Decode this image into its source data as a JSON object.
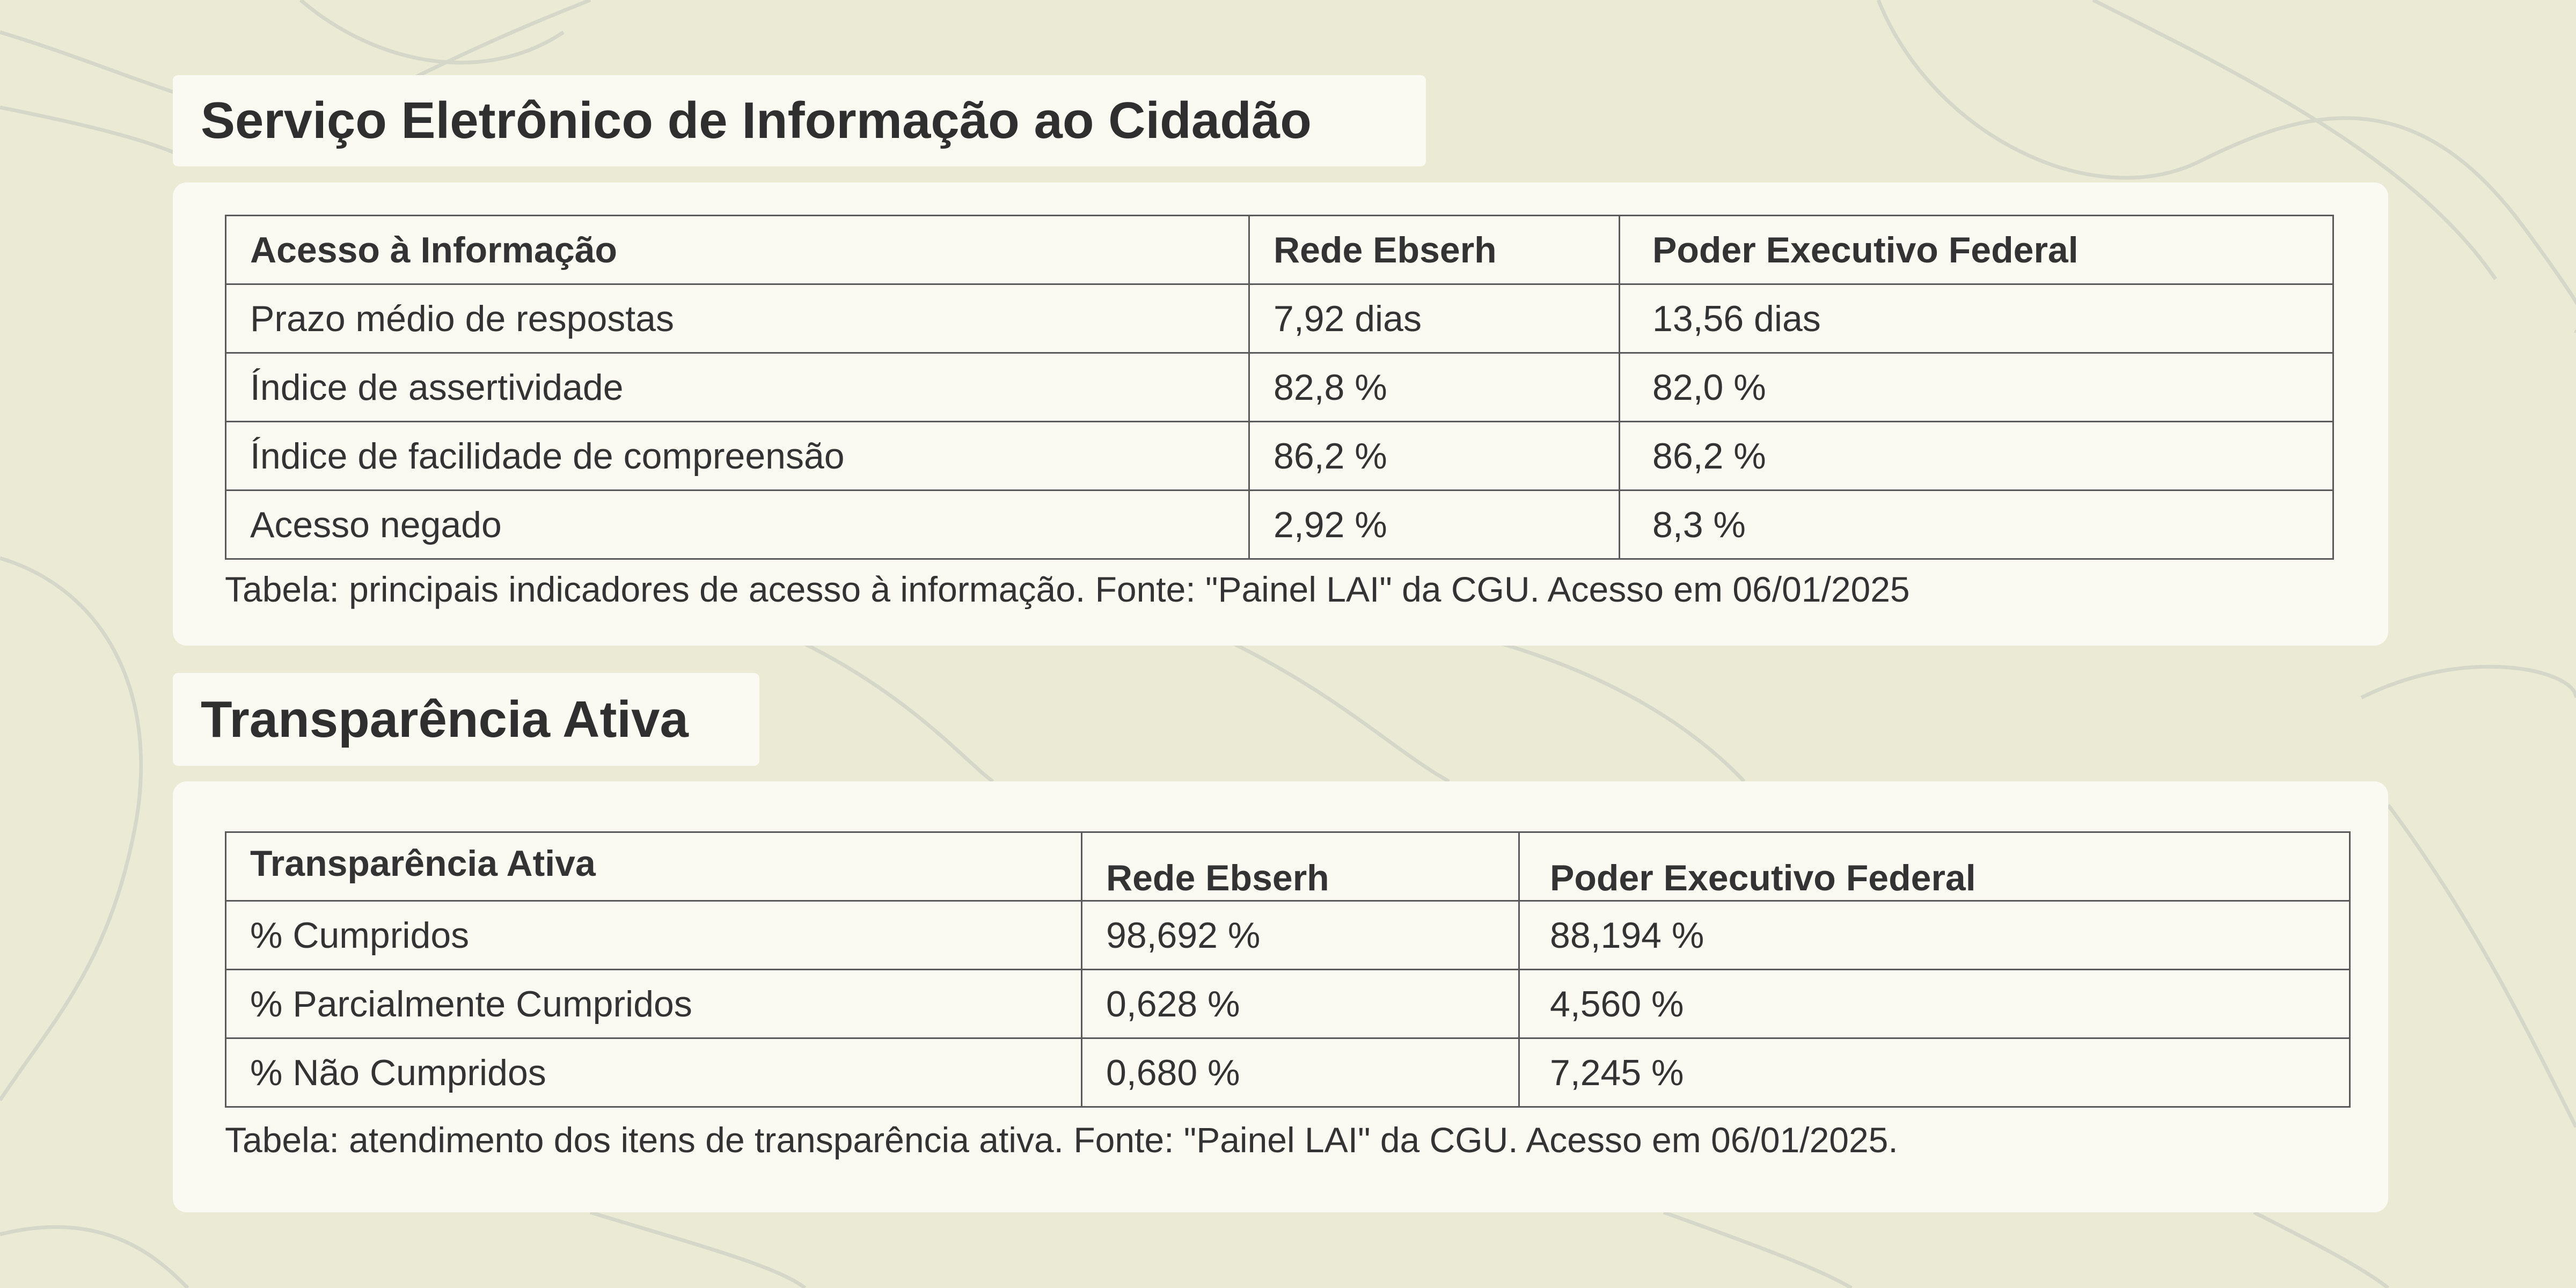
{
  "sections": [
    {
      "title": "Serviço Eletrônico de Informação ao Cidadão",
      "table": {
        "headers": [
          "Acesso à Informação",
          "Rede Ebserh",
          "Poder Executivo Federal"
        ],
        "rows": [
          [
            "Prazo médio de respostas",
            "7,92 dias",
            "13,56 dias"
          ],
          [
            "Índice de assertividade",
            "82,8 %",
            "82,0 %"
          ],
          [
            "Índice de facilidade de compreensão",
            "86,2 %",
            "86,2 %"
          ],
          [
            "Acesso negado",
            "2,92 %",
            "8,3 %"
          ]
        ]
      },
      "caption": "Tabela: principais indicadores de acesso à informação. Fonte: \"Painel LAI\" da CGU. Acesso em 06/01/2025"
    },
    {
      "title": "Transparência Ativa",
      "table": {
        "headers": [
          "Transparência Ativa",
          "Rede Ebserh",
          "Poder Executivo Federal"
        ],
        "rows": [
          [
            "% Cumpridos",
            "98,692 %",
            "88,194 %"
          ],
          [
            "% Parcialmente Cumpridos",
            "0,628 %",
            "4,560 %"
          ],
          [
            "% Não Cumpridos",
            "0,680 %",
            "7,245 %"
          ]
        ]
      },
      "caption": "Tabela: atendimento dos itens de transparência ativa. Fonte: \"Painel LAI\" da CGU. Acesso em 06/01/2025."
    }
  ],
  "colors": {
    "background": "#ebebd5",
    "panel": "#fafaf2",
    "text": "#333333",
    "border": "#5a5a5a",
    "decorative_lines": "#d5d7c8"
  }
}
